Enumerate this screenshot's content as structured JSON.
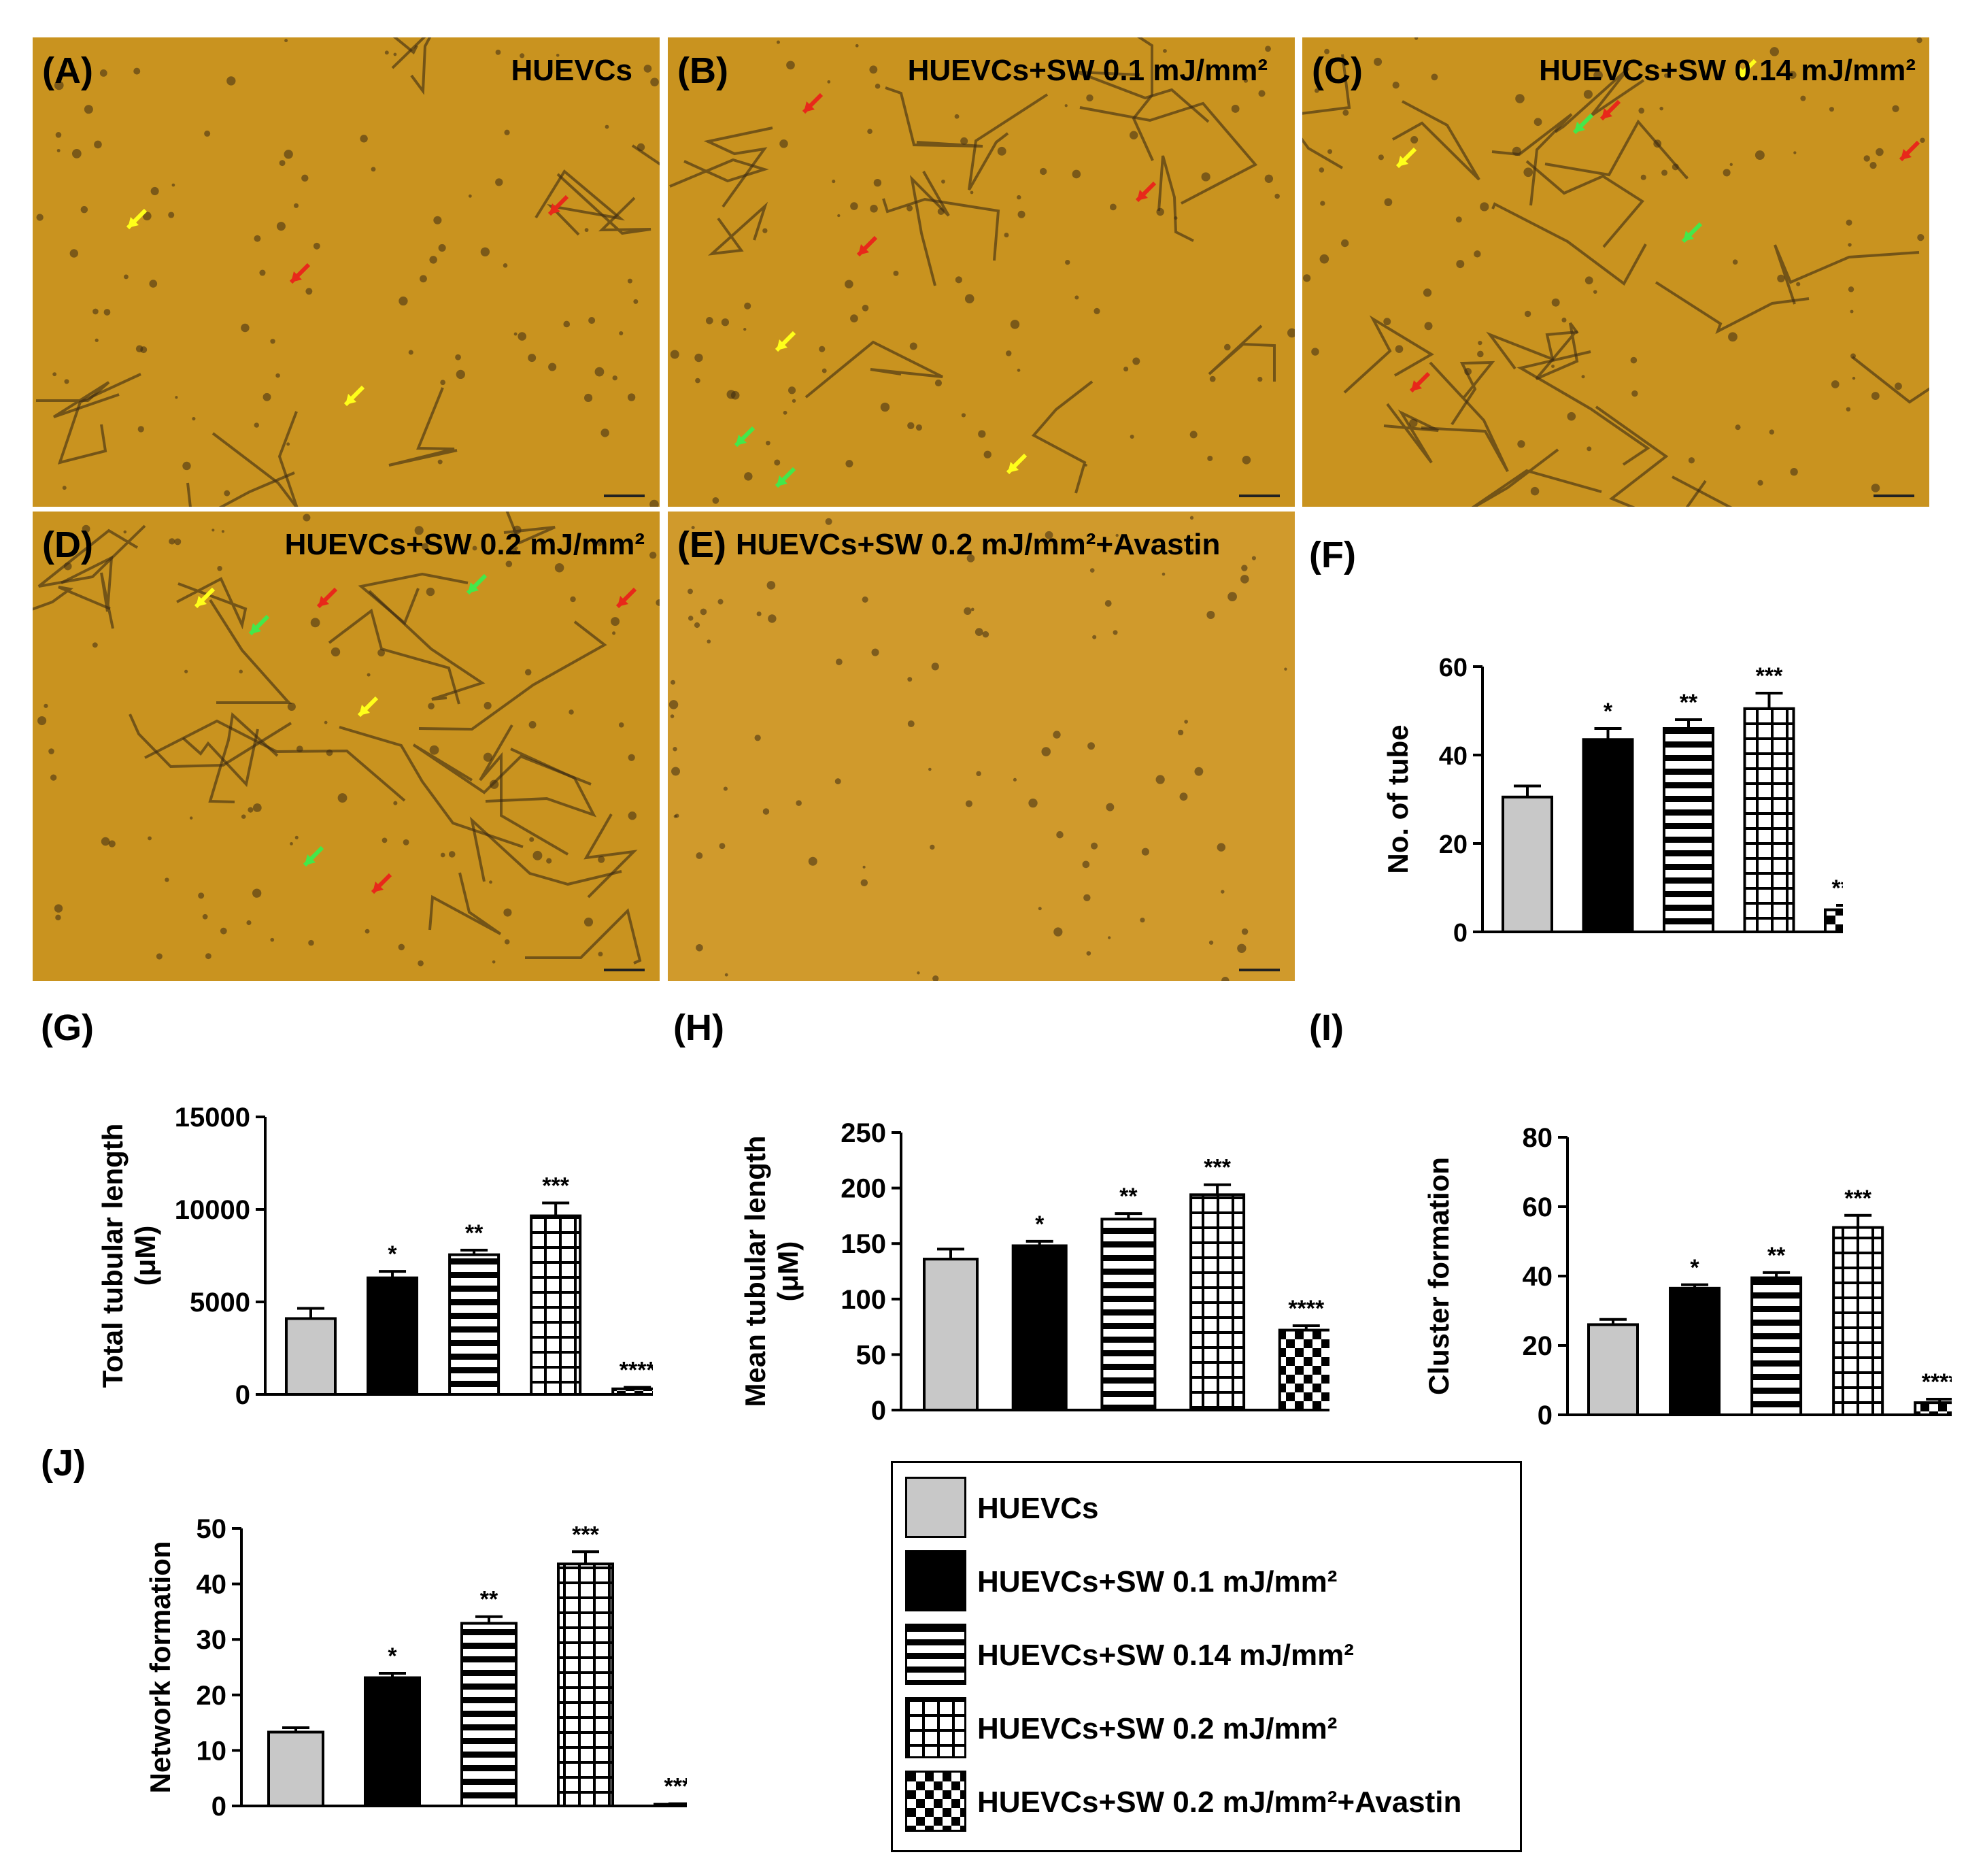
{
  "colors": {
    "micrograph_bg": "#c9931f",
    "micrograph_bg_E": "#d09a2c",
    "cell": "#3b2a12",
    "arrow_red": "#e8281a",
    "arrow_yellow": "#ffff1a",
    "arrow_green": "#43e84a",
    "bar_gray": "#c8c8c8"
  },
  "panels": [
    {
      "label": "(A)",
      "title": "HUEVCs"
    },
    {
      "label": "(B)",
      "title": "HUEVCs+SW 0.1 mJ/mm²"
    },
    {
      "label": "(C)",
      "title": "HUEVCs+SW 0.14 mJ/mm²"
    },
    {
      "label": "(D)",
      "title": "HUEVCs+SW 0.2 mJ/mm²"
    },
    {
      "label": "(E)",
      "title": "HUEVCs+SW 0.2 mJ/mm²+Avastin"
    }
  ],
  "chart_labels": {
    "F": "(F)",
    "G": "(G)",
    "H": "(H)",
    "I": "(I)",
    "J": "(J)"
  },
  "legend": {
    "items": [
      {
        "label": "HUEVCs",
        "pattern": "gray"
      },
      {
        "label": "HUEVCs+SW 0.1 mJ/mm²",
        "pattern": "black"
      },
      {
        "label": "HUEVCs+SW 0.14 mJ/mm²",
        "pattern": "hstripe"
      },
      {
        "label": "HUEVCs+SW 0.2 mJ/mm²",
        "pattern": "grid"
      },
      {
        "label": "HUEVCs+SW 0.2 mJ/mm²+Avastin",
        "pattern": "checker"
      }
    ]
  },
  "chart_data": [
    {
      "id": "F",
      "type": "bar",
      "categories": [
        "HUEVCs",
        "HUEVCs+SW 0.1 mJ/mm²",
        "HUEVCs+SW 0.14 mJ/mm²",
        "HUEVCs+SW 0.2 mJ/mm²",
        "HUEVCs+SW 0.2 mJ/mm²+Avastin"
      ],
      "values": [
        30.5,
        43.5,
        46,
        50.5,
        5
      ],
      "errors": [
        2.5,
        2.5,
        2,
        3.5,
        1
      ],
      "significance": [
        "",
        "*",
        "**",
        "***",
        "****"
      ],
      "ylabel": "No. of tube",
      "ylim": [
        0,
        60
      ],
      "yticks": [
        0,
        20,
        40,
        60
      ]
    },
    {
      "id": "G",
      "type": "bar",
      "categories": [
        "HUEVCs",
        "HUEVCs+SW 0.1 mJ/mm²",
        "HUEVCs+SW 0.14 mJ/mm²",
        "HUEVCs+SW 0.2 mJ/mm²",
        "HUEVCs+SW 0.2 mJ/mm²+Avastin"
      ],
      "values": [
        4100,
        6300,
        7550,
        9650,
        300
      ],
      "errors": [
        550,
        350,
        250,
        700,
        80
      ],
      "significance": [
        "",
        "*",
        "**",
        "***",
        "****"
      ],
      "ylabel": [
        "Total tubular length",
        "(μM)"
      ],
      "ylim": [
        0,
        15000
      ],
      "yticks": [
        0,
        5000,
        10000,
        15000
      ]
    },
    {
      "id": "H",
      "type": "bar",
      "categories": [
        "HUEVCs",
        "HUEVCs+SW 0.1 mJ/mm²",
        "HUEVCs+SW 0.14 mJ/mm²",
        "HUEVCs+SW 0.2 mJ/mm²",
        "HUEVCs+SW 0.2 mJ/mm²+Avastin"
      ],
      "values": [
        136,
        148,
        172,
        194,
        72
      ],
      "errors": [
        9,
        4,
        5,
        9,
        4
      ],
      "significance": [
        "",
        "*",
        "**",
        "***",
        "****"
      ],
      "ylabel": [
        "Mean tubular length",
        "(μM)"
      ],
      "ylim": [
        0,
        250
      ],
      "yticks": [
        0,
        50,
        100,
        150,
        200,
        250
      ]
    },
    {
      "id": "I",
      "type": "bar",
      "categories": [
        "HUEVCs",
        "HUEVCs+SW 0.1 mJ/mm²",
        "HUEVCs+SW 0.14 mJ/mm²",
        "HUEVCs+SW 0.2 mJ/mm²",
        "HUEVCs+SW 0.2 mJ/mm²+Avastin"
      ],
      "values": [
        26,
        36.5,
        39.5,
        54,
        3.5
      ],
      "errors": [
        1.5,
        1,
        1.5,
        3.5,
        1
      ],
      "significance": [
        "",
        "*",
        "**",
        "***",
        "****"
      ],
      "ylabel": "Cluster formation",
      "ylim": [
        0,
        80
      ],
      "yticks": [
        0,
        20,
        40,
        60,
        80
      ]
    },
    {
      "id": "J",
      "type": "bar",
      "categories": [
        "HUEVCs",
        "HUEVCs+SW 0.1 mJ/mm²",
        "HUEVCs+SW 0.14 mJ/mm²",
        "HUEVCs+SW 0.2 mJ/mm²",
        "HUEVCs+SW 0.2 mJ/mm²+Avastin"
      ],
      "values": [
        13.3,
        23.1,
        32.9,
        43.6,
        0.3
      ],
      "errors": [
        0.8,
        0.8,
        1.2,
        2.2,
        0.1
      ],
      "significance": [
        "",
        "*",
        "**",
        "***",
        "****"
      ],
      "ylabel": "Network formation",
      "ylim": [
        0,
        50
      ],
      "yticks": [
        0,
        10,
        20,
        30,
        40,
        50
      ]
    }
  ]
}
